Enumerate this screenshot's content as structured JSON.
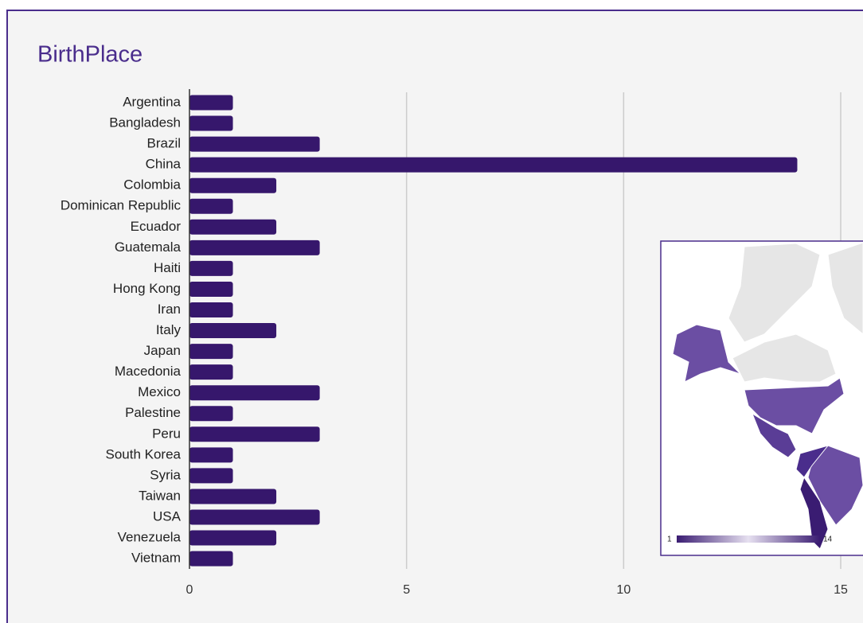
{
  "chart_data": {
    "type": "barh",
    "title": "BirthPlace",
    "categories": [
      "Argentina",
      "Bangladesh",
      "Brazil",
      "China",
      "Colombia",
      "Dominican Republic",
      "Ecuador",
      "Guatemala",
      "Haiti",
      "Hong Kong",
      "Iran",
      "Italy",
      "Japan",
      "Macedonia",
      "Mexico",
      "Palestine",
      "Peru",
      "South Korea",
      "Syria",
      "Taiwan",
      "USA",
      "Venezuela",
      "Vietnam"
    ],
    "values": [
      1,
      1,
      3,
      14,
      2,
      1,
      2,
      3,
      1,
      1,
      1,
      2,
      1,
      1,
      3,
      1,
      3,
      1,
      1,
      2,
      3,
      2,
      1
    ],
    "color": "#36176c",
    "xlim": [
      0,
      15
    ],
    "xticks": [
      0,
      5,
      10,
      15
    ],
    "grid": true,
    "inset_map": {
      "legend_min": 1,
      "legend_max": 14
    }
  }
}
